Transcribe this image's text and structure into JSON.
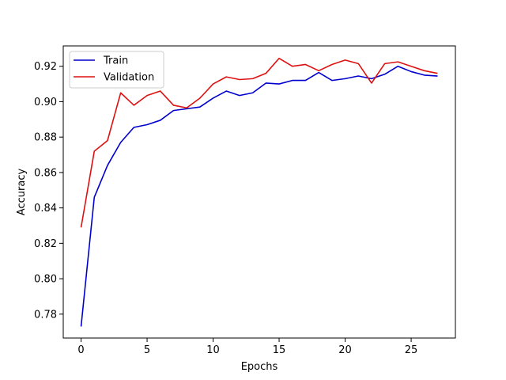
{
  "chart_data": {
    "type": "line",
    "title": "",
    "xlabel": "Epochs",
    "ylabel": "Accuracy",
    "xlim": [
      -1.35,
      28.35
    ],
    "ylim": [
      0.7665,
      0.9315
    ],
    "x_ticks": [
      0,
      5,
      10,
      15,
      20,
      25
    ],
    "y_ticks": [
      0.78,
      0.8,
      0.82,
      0.84,
      0.86,
      0.88,
      0.9,
      0.92
    ],
    "y_tick_decimals": 2,
    "grid": false,
    "legend_position": "upper-left",
    "x": [
      0,
      1,
      2,
      3,
      4,
      5,
      6,
      7,
      8,
      9,
      10,
      11,
      12,
      13,
      14,
      15,
      16,
      17,
      18,
      19,
      20,
      21,
      22,
      23,
      24,
      25,
      26,
      27
    ],
    "series": [
      {
        "name": "Train",
        "color": "#0000cc",
        "values": [
          0.773,
          0.846,
          0.864,
          0.877,
          0.8855,
          0.887,
          0.8895,
          0.895,
          0.896,
          0.897,
          0.902,
          0.906,
          0.9035,
          0.905,
          0.9105,
          0.91,
          0.912,
          0.912,
          0.9165,
          0.912,
          0.913,
          0.9145,
          0.913,
          0.9155,
          0.92,
          0.917,
          0.915,
          0.9145
        ]
      },
      {
        "name": "Validation",
        "color": "#dd1111",
        "values": [
          0.829,
          0.872,
          0.878,
          0.905,
          0.898,
          0.9035,
          0.906,
          0.898,
          0.8965,
          0.902,
          0.91,
          0.914,
          0.9125,
          0.913,
          0.916,
          0.9245,
          0.92,
          0.921,
          0.9175,
          0.921,
          0.9235,
          0.9215,
          0.9105,
          0.9215,
          0.9225,
          0.92,
          0.9175,
          0.916
        ]
      }
    ]
  }
}
